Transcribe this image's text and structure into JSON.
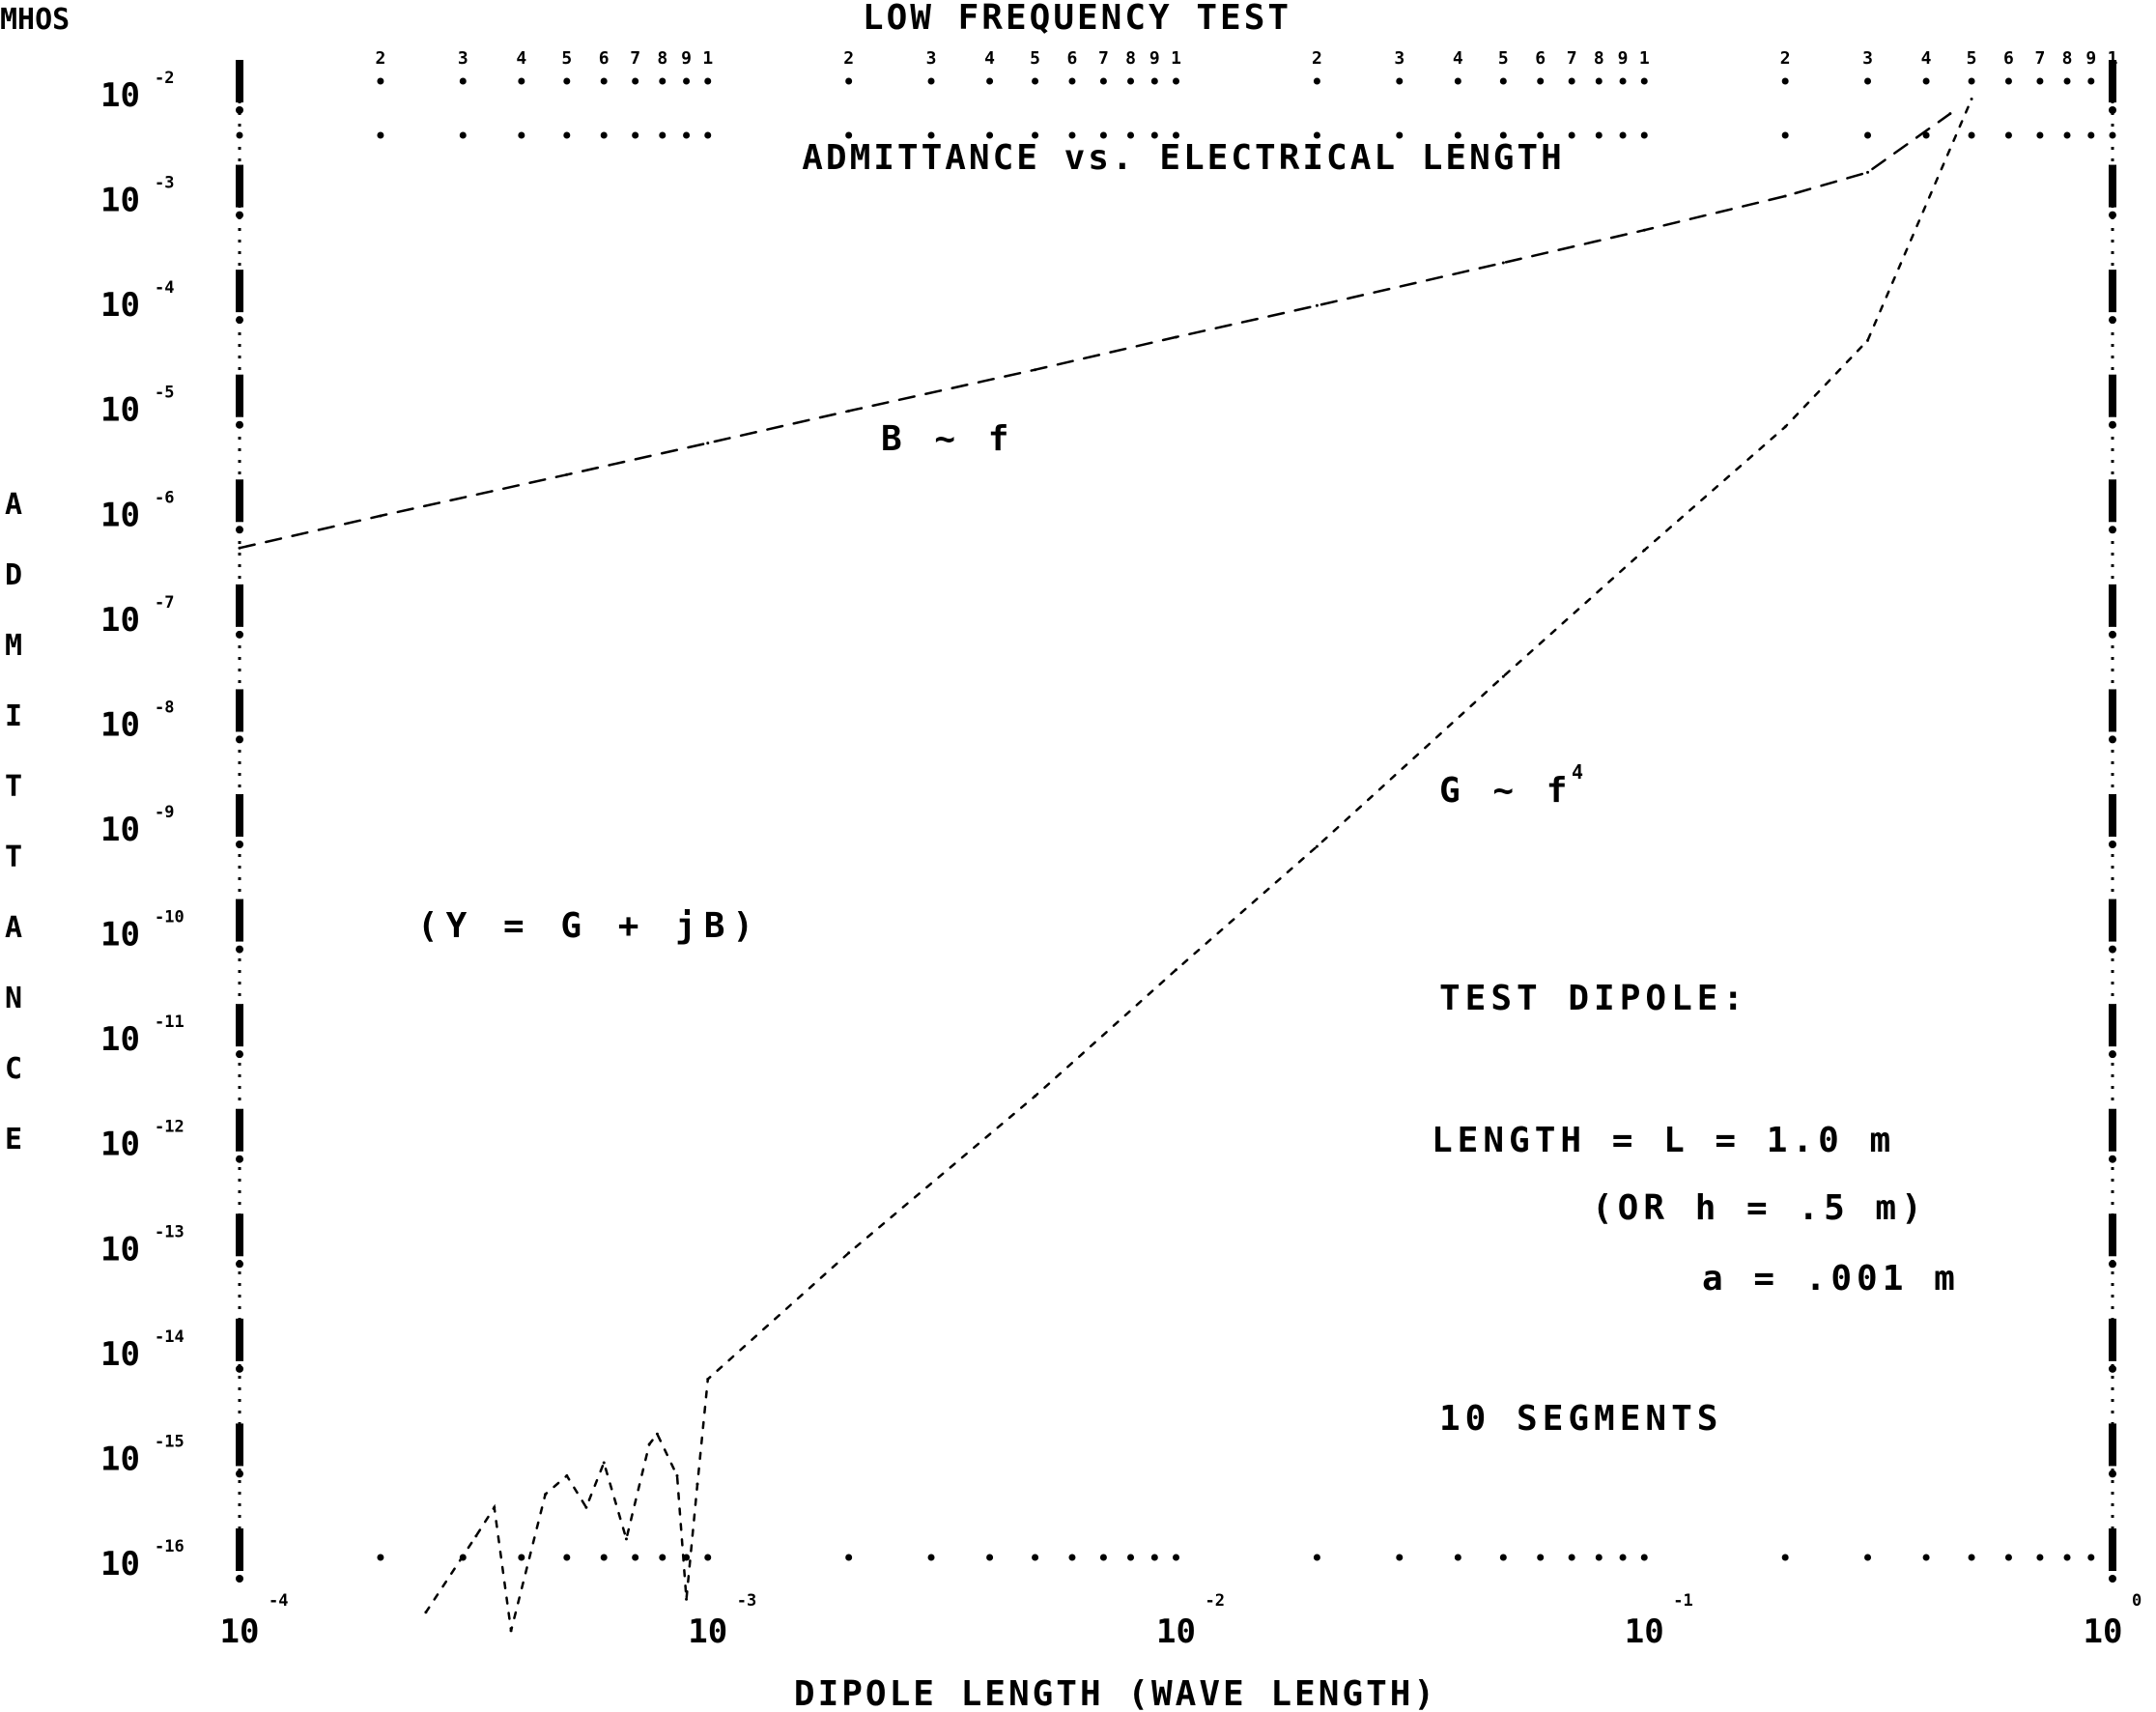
{
  "chart_data": {
    "type": "line",
    "title": "LOW FREQUENCY TEST",
    "subtitle": "ADMITTANCE vs. ELECTRICAL LENGTH",
    "unit_label": "MHOS",
    "ylabel": "ADMITTANCE",
    "xlabel": "DIPOLE LENGTH (WAVE LENGTH)",
    "x_scale": "log",
    "y_scale": "log",
    "xlim": [
      0.0001,
      1
    ],
    "ylim": [
      1e-16,
      0.01
    ],
    "x_ticks": [
      {
        "value": 0.0001,
        "base": "10",
        "exp": "-4"
      },
      {
        "value": 0.001,
        "base": "10",
        "exp": "-3"
      },
      {
        "value": 0.01,
        "base": "10",
        "exp": "-2"
      },
      {
        "value": 0.1,
        "base": "10",
        "exp": "-1"
      },
      {
        "value": 1,
        "base": "10",
        "exp": "0"
      }
    ],
    "y_ticks": [
      {
        "value": 0.01,
        "base": "10",
        "exp": "-2"
      },
      {
        "value": 0.001,
        "base": "10",
        "exp": "-3"
      },
      {
        "value": 0.0001,
        "base": "10",
        "exp": "-4"
      },
      {
        "value": 1e-05,
        "base": "10",
        "exp": "-5"
      },
      {
        "value": 1e-06,
        "base": "10",
        "exp": "-6"
      },
      {
        "value": 1e-07,
        "base": "10",
        "exp": "-7"
      },
      {
        "value": 1e-08,
        "base": "10",
        "exp": "-8"
      },
      {
        "value": 1e-09,
        "base": "10",
        "exp": "-9"
      },
      {
        "value": 1e-10,
        "base": "10",
        "exp": "-10"
      },
      {
        "value": 1e-11,
        "base": "10",
        "exp": "-11"
      },
      {
        "value": 1e-12,
        "base": "10",
        "exp": "-12"
      },
      {
        "value": 1e-13,
        "base": "10",
        "exp": "-13"
      },
      {
        "value": 1e-14,
        "base": "10",
        "exp": "-14"
      },
      {
        "value": 1e-15,
        "base": "10",
        "exp": "-15"
      },
      {
        "value": 1e-16,
        "base": "10",
        "exp": "-16"
      }
    ],
    "top_minor_labels": [
      "2",
      "3",
      "4",
      "5",
      "6",
      "7",
      "8",
      "9",
      "1"
    ],
    "grid": false,
    "series": [
      {
        "name": "B ~ f",
        "label": "B ~ f",
        "style": "dashed",
        "x": [
          0.0001,
          0.0002,
          0.0005,
          0.001,
          0.002,
          0.005,
          0.01,
          0.02,
          0.05,
          0.1,
          0.2,
          0.3,
          0.45
        ],
        "y": [
          4.2e-07,
          8.5e-07,
          2.1e-06,
          4.2e-06,
          8.5e-06,
          2.1e-05,
          4.3e-05,
          8.6e-05,
          0.00022,
          0.00045,
          0.00095,
          0.0016,
          0.0058
        ]
      },
      {
        "name": "G ~ f^4",
        "label": "G ~ f",
        "label_exponent": "4",
        "style": "dotted",
        "x": [
          0.00025,
          0.00032,
          0.00035,
          0.00038,
          0.00045,
          0.0005,
          0.00055,
          0.0006,
          0.00067,
          0.00075,
          0.00078,
          0.00086,
          0.0009,
          0.00095,
          0.001,
          0.002,
          0.005,
          0.01,
          0.02,
          0.05,
          0.1,
          0.2,
          0.3,
          0.5
        ],
        "y": [
          3e-17,
          1.6e-16,
          3e-16,
          2e-17,
          4e-16,
          6e-16,
          3e-16,
          8e-16,
          1.5e-16,
          1.2e-15,
          1.5e-15,
          6e-16,
          4e-17,
          5e-16,
          5e-15,
          8e-14,
          2.5e-12,
          4e-11,
          6e-10,
          2.5e-08,
          4e-07,
          6e-06,
          4e-05,
          0.008
        ]
      }
    ],
    "annotations": {
      "b_label": "B ~ f",
      "g_label": "G ~ f",
      "g_exponent": "4",
      "equation": "(Y = G + jB)",
      "dipole_title": "TEST DIPOLE:",
      "length_line": "LENGTH = L = 1.0 m",
      "half_line": "(OR h = .5 m)",
      "radius_line": "a = .001 m",
      "segments_line": "10 SEGMENTS"
    }
  }
}
